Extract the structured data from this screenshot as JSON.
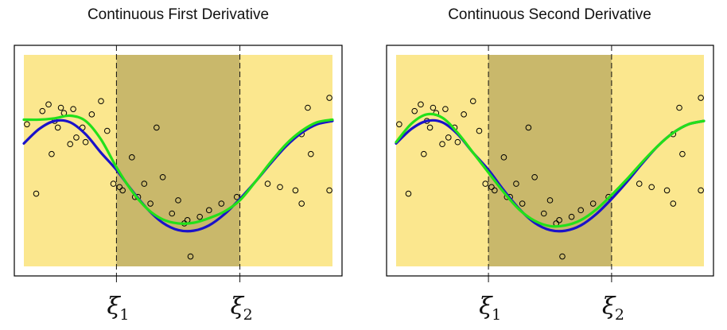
{
  "colors": {
    "outer_region": "#fbe78e",
    "middle_region": "#c9b86b",
    "blue_curve": "#1a12c9",
    "green_curve": "#22e01a",
    "points": "#000000",
    "frame": "#000000"
  },
  "chart_data": [
    {
      "type": "scatter",
      "title": "Continuous First Derivative",
      "xlim": [
        0,
        1
      ],
      "ylim": [
        -1.6,
        1.6
      ],
      "knots": [
        0.3,
        0.7
      ],
      "knot_labels": [
        {
          "symbol": "ξ",
          "sub": "1"
        },
        {
          "symbol": "ξ",
          "sub": "2"
        }
      ],
      "points": {
        "x": [
          0.01,
          0.04,
          0.06,
          0.08,
          0.09,
          0.1,
          0.11,
          0.12,
          0.13,
          0.15,
          0.16,
          0.17,
          0.19,
          0.2,
          0.22,
          0.25,
          0.27,
          0.29,
          0.31,
          0.32,
          0.35,
          0.36,
          0.37,
          0.39,
          0.41,
          0.43,
          0.45,
          0.48,
          0.5,
          0.52,
          0.53,
          0.54,
          0.57,
          0.6,
          0.64,
          0.69,
          0.79,
          0.83,
          0.88,
          0.9,
          0.9,
          0.92,
          0.93,
          0.99,
          0.99
        ],
        "y": [
          0.55,
          -0.5,
          0.75,
          0.85,
          0.1,
          0.6,
          0.5,
          0.8,
          0.72,
          0.25,
          0.78,
          0.35,
          0.5,
          0.28,
          0.7,
          0.9,
          0.45,
          -0.35,
          -0.4,
          -0.45,
          0.05,
          -0.55,
          -0.55,
          -0.35,
          -0.65,
          0.5,
          -0.25,
          -0.8,
          -0.6,
          -0.95,
          -0.9,
          -1.45,
          -0.85,
          -0.75,
          -0.65,
          -0.55,
          -0.35,
          -0.4,
          -0.45,
          -0.65,
          0.4,
          0.8,
          0.1,
          -0.45,
          0.95
        ]
      },
      "series": [
        {
          "x": [
            0,
            0.05,
            0.1,
            0.15,
            0.2,
            0.25,
            0.3,
            0.35,
            0.4,
            0.45,
            0.5,
            0.55,
            0.6,
            0.65,
            0.7,
            0.75,
            0.8,
            0.85,
            0.9,
            0.95,
            1.0
          ],
          "y": [
            0.26,
            0.48,
            0.6,
            0.58,
            0.4,
            0.12,
            -0.14,
            -0.45,
            -0.73,
            -0.94,
            -1.05,
            -1.06,
            -0.98,
            -0.81,
            -0.58,
            -0.32,
            -0.04,
            0.22,
            0.42,
            0.55,
            0.6
          ]
        },
        {
          "x": [
            0,
            0.05,
            0.1,
            0.15,
            0.2,
            0.25,
            0.3,
            0.35,
            0.4,
            0.45,
            0.5,
            0.55,
            0.6,
            0.65,
            0.7,
            0.75,
            0.8,
            0.85,
            0.9,
            0.95,
            1.0
          ],
          "y": [
            0.62,
            0.62,
            0.64,
            0.68,
            0.6,
            0.32,
            -0.1,
            -0.46,
            -0.73,
            -0.89,
            -0.95,
            -0.94,
            -0.87,
            -0.77,
            -0.6,
            -0.32,
            -0.02,
            0.25,
            0.45,
            0.58,
            0.62
          ]
        }
      ]
    },
    {
      "type": "scatter",
      "title": "Continuous Second Derivative",
      "xlim": [
        0,
        1
      ],
      "ylim": [
        -1.6,
        1.6
      ],
      "knots": [
        0.3,
        0.7
      ],
      "knot_labels": [
        {
          "symbol": "ξ",
          "sub": "1"
        },
        {
          "symbol": "ξ",
          "sub": "2"
        }
      ],
      "points": {
        "x": [
          0.01,
          0.04,
          0.06,
          0.08,
          0.09,
          0.1,
          0.11,
          0.12,
          0.13,
          0.15,
          0.16,
          0.17,
          0.19,
          0.2,
          0.22,
          0.25,
          0.27,
          0.29,
          0.31,
          0.32,
          0.35,
          0.36,
          0.37,
          0.39,
          0.41,
          0.43,
          0.45,
          0.48,
          0.5,
          0.52,
          0.53,
          0.54,
          0.57,
          0.6,
          0.64,
          0.69,
          0.79,
          0.83,
          0.88,
          0.9,
          0.9,
          0.92,
          0.93,
          0.99,
          0.99
        ],
        "y": [
          0.55,
          -0.5,
          0.75,
          0.85,
          0.1,
          0.6,
          0.5,
          0.8,
          0.72,
          0.25,
          0.78,
          0.35,
          0.5,
          0.28,
          0.7,
          0.9,
          0.45,
          -0.35,
          -0.4,
          -0.45,
          0.05,
          -0.55,
          -0.55,
          -0.35,
          -0.65,
          0.5,
          -0.25,
          -0.8,
          -0.6,
          -0.95,
          -0.9,
          -1.45,
          -0.85,
          -0.75,
          -0.65,
          -0.55,
          -0.35,
          -0.4,
          -0.45,
          -0.65,
          0.4,
          0.8,
          0.1,
          -0.45,
          0.95
        ]
      },
      "series": [
        {
          "x": [
            0,
            0.05,
            0.1,
            0.15,
            0.2,
            0.25,
            0.3,
            0.35,
            0.4,
            0.45,
            0.5,
            0.55,
            0.6,
            0.65,
            0.7,
            0.75,
            0.8,
            0.85,
            0.9,
            0.95,
            1.0
          ],
          "y": [
            0.26,
            0.48,
            0.6,
            0.58,
            0.4,
            0.12,
            -0.14,
            -0.45,
            -0.73,
            -0.94,
            -1.05,
            -1.06,
            -0.98,
            -0.81,
            -0.58,
            -0.32,
            -0.04,
            0.22,
            0.42,
            0.55,
            0.6
          ]
        },
        {
          "x": [
            0,
            0.05,
            0.1,
            0.15,
            0.2,
            0.25,
            0.3,
            0.35,
            0.4,
            0.45,
            0.5,
            0.55,
            0.6,
            0.65,
            0.7,
            0.75,
            0.8,
            0.85,
            0.9,
            0.95,
            1.0
          ],
          "y": [
            0.28,
            0.56,
            0.7,
            0.65,
            0.42,
            0.12,
            -0.18,
            -0.48,
            -0.74,
            -0.91,
            -0.99,
            -0.98,
            -0.9,
            -0.74,
            -0.52,
            -0.28,
            -0.02,
            0.22,
            0.42,
            0.55,
            0.6
          ]
        }
      ]
    }
  ]
}
